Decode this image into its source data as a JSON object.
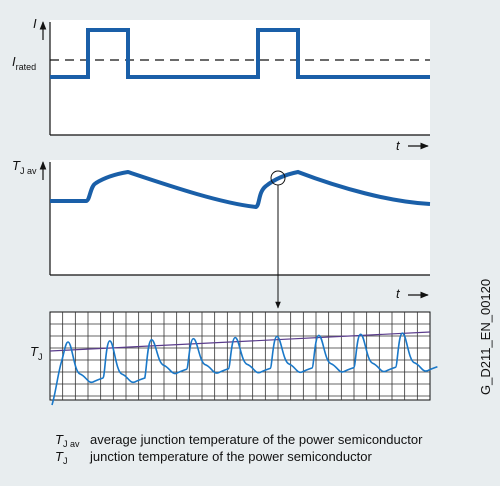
{
  "labels": {
    "current_axis": "I",
    "rated_current": {
      "symbol": "I",
      "subscript": "rated"
    },
    "time_axis_top": "t",
    "avg_temp_axis": {
      "symbol": "T",
      "subscript": "J av"
    },
    "time_axis_middle": "t",
    "temp_axis": {
      "symbol": "T",
      "subscript": "J"
    }
  },
  "legend": [
    {
      "symbol": "T",
      "subscript": "J av",
      "text": "average junction temperature of the power semiconductor"
    },
    {
      "symbol": "T",
      "subscript": "J",
      "text": "junction temperature of the power semiconductor"
    }
  ],
  "figure_id": "G_D211_EN_00120"
}
